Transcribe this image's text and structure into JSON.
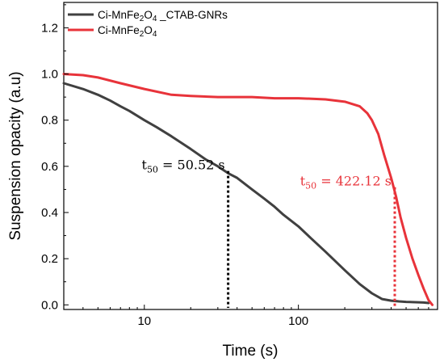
{
  "chart_data": {
    "type": "line",
    "xlabel": "Time (s)",
    "ylabel": "Suspension opacity (a.u)",
    "xscale": "log",
    "xlim": [
      3,
      800
    ],
    "ylim": [
      -0.02,
      1.31
    ],
    "xticks": [
      10,
      100
    ],
    "xtick_labels": [
      "10",
      "100"
    ],
    "yticks": [
      0.0,
      0.2,
      0.4,
      0.6,
      0.8,
      1.0,
      1.2
    ],
    "ytick_labels": [
      "0.0",
      "0.2",
      "0.4",
      "0.6",
      "0.8",
      "1.0",
      "1.2"
    ],
    "grid": false,
    "legend_position": "top-left",
    "series": [
      {
        "name": "Ci-MnFe2O4 _CTAB-GNRs",
        "legend_parts": [
          {
            "text": "Ci-MnFe",
            "sub": false
          },
          {
            "text": "2",
            "sub": true
          },
          {
            "text": "O",
            "sub": false
          },
          {
            "text": "4",
            "sub": true
          },
          {
            "text": " _CTAB-GNRs",
            "sub": false
          }
        ],
        "color": "#404040",
        "x": [
          3,
          4,
          5,
          6,
          7,
          8,
          10,
          12,
          15,
          20,
          25,
          30,
          35,
          40,
          50,
          60,
          70,
          80,
          100,
          120,
          150,
          200,
          250,
          300,
          350,
          400,
          450,
          500,
          550,
          600,
          650,
          700
        ],
        "y": [
          0.96,
          0.935,
          0.91,
          0.885,
          0.86,
          0.84,
          0.8,
          0.77,
          0.73,
          0.675,
          0.63,
          0.6,
          0.57,
          0.55,
          0.5,
          0.46,
          0.425,
          0.39,
          0.34,
          0.29,
          0.23,
          0.15,
          0.09,
          0.05,
          0.025,
          0.018,
          0.015,
          0.013,
          0.012,
          0.011,
          0.01,
          0.008
        ]
      },
      {
        "name": "Ci-MnFe2O4",
        "legend_parts": [
          {
            "text": "Ci-MnFe",
            "sub": false
          },
          {
            "text": "2",
            "sub": true
          },
          {
            "text": "O",
            "sub": false
          },
          {
            "text": "4",
            "sub": true
          }
        ],
        "color": "#e8333a",
        "x": [
          3,
          4,
          5,
          7,
          10,
          15,
          20,
          30,
          50,
          70,
          100,
          150,
          200,
          250,
          280,
          300,
          330,
          360,
          400,
          430,
          460,
          500,
          550,
          600,
          650,
          700,
          740
        ],
        "y": [
          1.0,
          0.995,
          0.985,
          0.96,
          0.935,
          0.91,
          0.905,
          0.9,
          0.9,
          0.895,
          0.895,
          0.89,
          0.88,
          0.86,
          0.83,
          0.8,
          0.74,
          0.65,
          0.55,
          0.47,
          0.38,
          0.29,
          0.2,
          0.13,
          0.07,
          0.02,
          0.0
        ]
      }
    ],
    "annotations": [
      {
        "prefix": "t",
        "sub": "50",
        "text": " = 50.52 s",
        "color": "#000000",
        "x": 35,
        "y": 0.58
      },
      {
        "prefix": "t",
        "sub": "50",
        "text": " = 422.12 s",
        "color": "#e8333a",
        "x": 422.12,
        "y": 0.51
      }
    ]
  }
}
